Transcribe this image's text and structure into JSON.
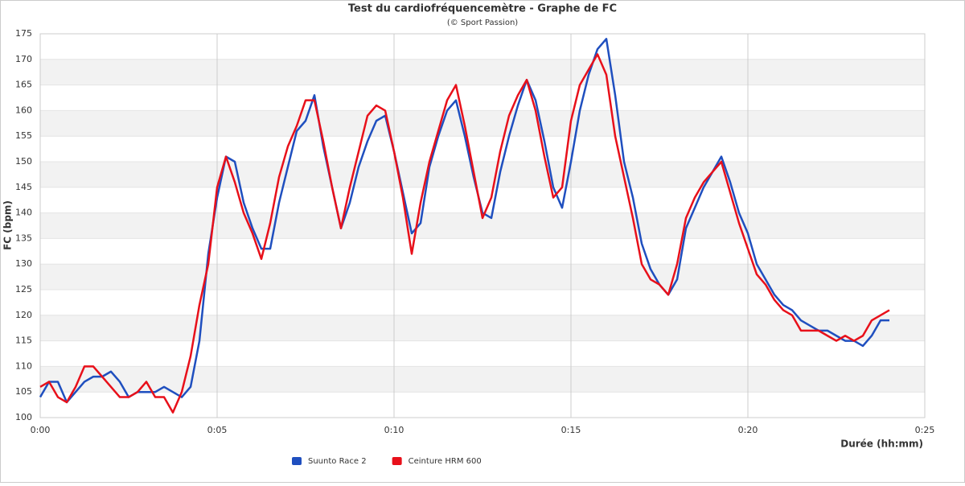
{
  "chart_data": {
    "type": "line",
    "title": "Test du cardiofréquencemètre - Graphe de FC",
    "subtitle": "(© Sport Passion)",
    "x_label": "Durée (hh:mm)",
    "y_label": "FC (bpm)",
    "x": [
      0,
      0.25,
      0.5,
      0.75,
      1,
      1.25,
      1.5,
      1.75,
      2,
      2.25,
      2.5,
      2.75,
      3,
      3.25,
      3.5,
      3.75,
      4,
      4.25,
      4.5,
      4.75,
      5,
      5.25,
      5.5,
      5.75,
      6,
      6.25,
      6.5,
      6.75,
      7,
      7.25,
      7.5,
      7.75,
      8,
      8.25,
      8.5,
      8.75,
      9,
      9.25,
      9.5,
      9.75,
      10,
      10.25,
      10.5,
      10.75,
      11,
      11.25,
      11.5,
      11.75,
      12,
      12.25,
      12.5,
      12.75,
      13,
      13.25,
      13.5,
      13.75,
      14,
      14.25,
      14.5,
      14.75,
      15,
      15.25,
      15.5,
      15.75,
      16,
      16.25,
      16.5,
      16.75,
      17,
      17.25,
      17.5,
      17.75,
      18,
      18.25,
      18.5,
      18.75,
      19,
      19.25,
      19.5,
      19.75,
      20,
      20.25,
      20.5,
      20.75,
      21,
      21.25,
      21.5,
      21.75,
      22,
      22.25,
      22.5,
      22.75,
      23,
      23.25,
      23.5,
      23.75,
      24
    ],
    "series": [
      {
        "name": "Suunto Race 2",
        "color": "#1f4fbf",
        "values": [
          104,
          107,
          107,
          103,
          105,
          107,
          108,
          108,
          109,
          107,
          104,
          105,
          105,
          105,
          106,
          105,
          104,
          106,
          115,
          132,
          143,
          151,
          150,
          142,
          137,
          133,
          133,
          142,
          149,
          156,
          158,
          163,
          153,
          145,
          137,
          142,
          149,
          154,
          158,
          159,
          152,
          144,
          136,
          138,
          149,
          155,
          160,
          162,
          155,
          147,
          140,
          139,
          148,
          155,
          161,
          166,
          162,
          154,
          145,
          141,
          150,
          160,
          167,
          172,
          174,
          163,
          150,
          143,
          134,
          129,
          126,
          124,
          127,
          137,
          141,
          145,
          148,
          151,
          146,
          140,
          136,
          130,
          127,
          124,
          122,
          121,
          119,
          118,
          117,
          117,
          116,
          115,
          115,
          114,
          116,
          119,
          119
        ]
      },
      {
        "name": "Ceinture HRM 600",
        "color": "#e8101a",
        "values": [
          106,
          107,
          104,
          103,
          106,
          110,
          110,
          108,
          106,
          104,
          104,
          105,
          107,
          104,
          104,
          101,
          105,
          112,
          122,
          130,
          145,
          151,
          146,
          140,
          136,
          131,
          138,
          147,
          153,
          157,
          162,
          162,
          154,
          145,
          137,
          145,
          152,
          159,
          161,
          160,
          152,
          143,
          132,
          142,
          150,
          156,
          162,
          165,
          157,
          148,
          139,
          143,
          152,
          159,
          163,
          166,
          160,
          151,
          143,
          145,
          158,
          165,
          168,
          171,
          167,
          155,
          147,
          139,
          130,
          127,
          126,
          124,
          130,
          139,
          143,
          146,
          148,
          150,
          144,
          138,
          133,
          128,
          126,
          123,
          121,
          120,
          117,
          117,
          117,
          116,
          115,
          116,
          115,
          116,
          119,
          120,
          121
        ]
      }
    ],
    "xlim": [
      0,
      25
    ],
    "xticks": [
      {
        "value": 0,
        "label": "0:00"
      },
      {
        "value": 5,
        "label": "0:05"
      },
      {
        "value": 10,
        "label": "0:10"
      },
      {
        "value": 15,
        "label": "0:15"
      },
      {
        "value": 20,
        "label": "0:20"
      },
      {
        "value": 25,
        "label": "0:25"
      }
    ],
    "ylim": [
      100,
      175
    ],
    "yticks": [
      100,
      105,
      110,
      115,
      120,
      125,
      130,
      135,
      140,
      145,
      150,
      155,
      160,
      165,
      170,
      175
    ],
    "grid": true,
    "legend": "bottom"
  }
}
